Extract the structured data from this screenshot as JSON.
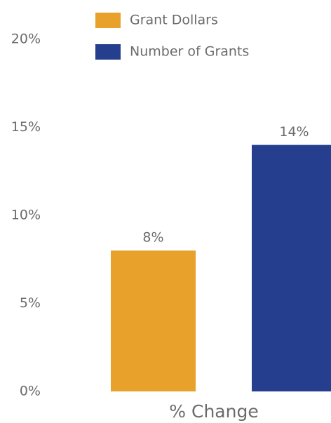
{
  "chart_data": {
    "type": "bar",
    "categories": [
      "% Change"
    ],
    "series": [
      {
        "name": "Grant Dollars",
        "color": "#E8A22B",
        "values": [
          8
        ],
        "value_labels": [
          "8%"
        ]
      },
      {
        "name": "Number of Grants",
        "color": "#253F8E",
        "values": [
          14
        ],
        "value_labels": [
          "14%"
        ]
      }
    ],
    "ylim": [
      0,
      20
    ],
    "yticks": [
      {
        "value": 0,
        "label": "0%"
      },
      {
        "value": 5,
        "label": "5%"
      },
      {
        "value": 10,
        "label": "10%"
      },
      {
        "value": 15,
        "label": "15%"
      },
      {
        "value": 20,
        "label": "20%"
      }
    ],
    "grid": false,
    "legend": "top"
  }
}
